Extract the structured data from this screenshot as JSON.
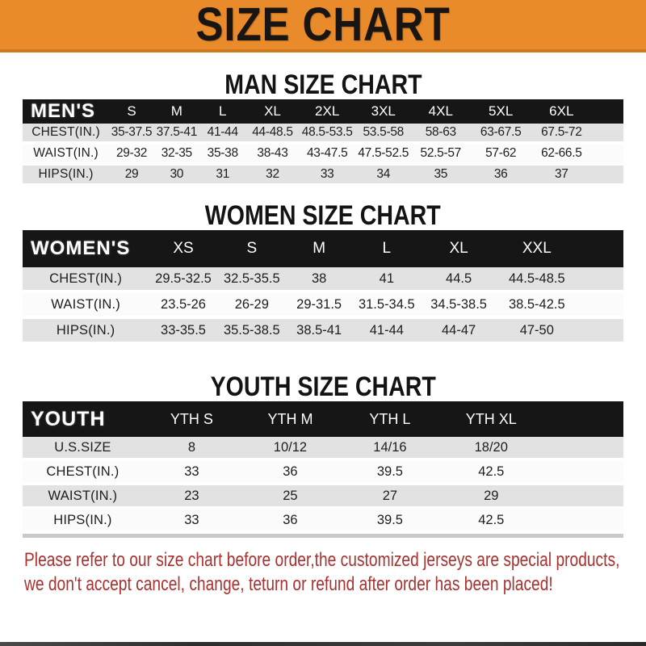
{
  "banner": {
    "title": "SIZE CHART"
  },
  "colors": {
    "banner_orange": "#e98a2b",
    "banner_border_orange": "#cf781e",
    "table_header_black": "#161616",
    "row_gray": "#e2e2e2",
    "row_white": "#fbfbfb",
    "note_red": "#a83230"
  },
  "sections": [
    {
      "id": "men",
      "heading": "MAN SIZE CHART",
      "label": "MEN'S",
      "columns": [
        "S",
        "M",
        "L",
        "XL",
        "2XL",
        "3XL",
        "4XL",
        "5XL",
        "6XL"
      ],
      "rows": [
        {
          "label": "CHEST(IN.)",
          "values": [
            "35-37.5",
            "37.5-41",
            "41-44",
            "44-48.5",
            "48.5-53.5",
            "53.5-58",
            "58-63",
            "63-67.5",
            "67.5-72"
          ]
        },
        {
          "label": "WAIST(IN.)",
          "values": [
            "29-32",
            "32-35",
            "35-38",
            "38-43",
            "43-47.5",
            "47.5-52.5",
            "52.5-57",
            "57-62",
            "62-66.5"
          ]
        },
        {
          "label": "HIPS(IN.)",
          "values": [
            "29",
            "30",
            "31",
            "32",
            "33",
            "34",
            "35",
            "36",
            "37"
          ]
        }
      ]
    },
    {
      "id": "women",
      "heading": "WOMEN SIZE CHART",
      "label": "WOMEN'S",
      "columns": [
        "XS",
        "S",
        "M",
        "L",
        "XL",
        "XXL"
      ],
      "rows": [
        {
          "label": "CHEST(IN.)",
          "values": [
            "29.5-32.5",
            "32.5-35.5",
            "38",
            "41",
            "44.5",
            "44.5-48.5"
          ]
        },
        {
          "label": "WAIST(IN.)",
          "values": [
            "23.5-26",
            "26-29",
            "29-31.5",
            "31.5-34.5",
            "34.5-38.5",
            "38.5-42.5"
          ]
        },
        {
          "label": "HIPS(IN.)",
          "values": [
            "33-35.5",
            "35.5-38.5",
            "38.5-41",
            "41-44",
            "44-47",
            "47-50"
          ]
        }
      ]
    },
    {
      "id": "youth",
      "heading": "YOUTH SIZE CHART",
      "label": "YOUTH",
      "columns": [
        "YTH S",
        "YTH M",
        "YTH L",
        "YTH XL"
      ],
      "rows": [
        {
          "label": "U.S.SIZE",
          "values": [
            "8",
            "10/12",
            "14/16",
            "18/20"
          ]
        },
        {
          "label": "CHEST(IN.)",
          "values": [
            "33",
            "36",
            "39.5",
            "42.5"
          ]
        },
        {
          "label": "WAIST(IN.)",
          "values": [
            "23",
            "25",
            "27",
            "29"
          ]
        },
        {
          "label": "HIPS(IN.)",
          "values": [
            "33",
            "36",
            "39.5",
            "42.5"
          ]
        }
      ]
    }
  ],
  "note": {
    "line1": "Please refer to our size chart before order,the customized jerseys are special products,",
    "line2": "we don't accept cancel, change, teturn or refund after order has been placed!"
  }
}
